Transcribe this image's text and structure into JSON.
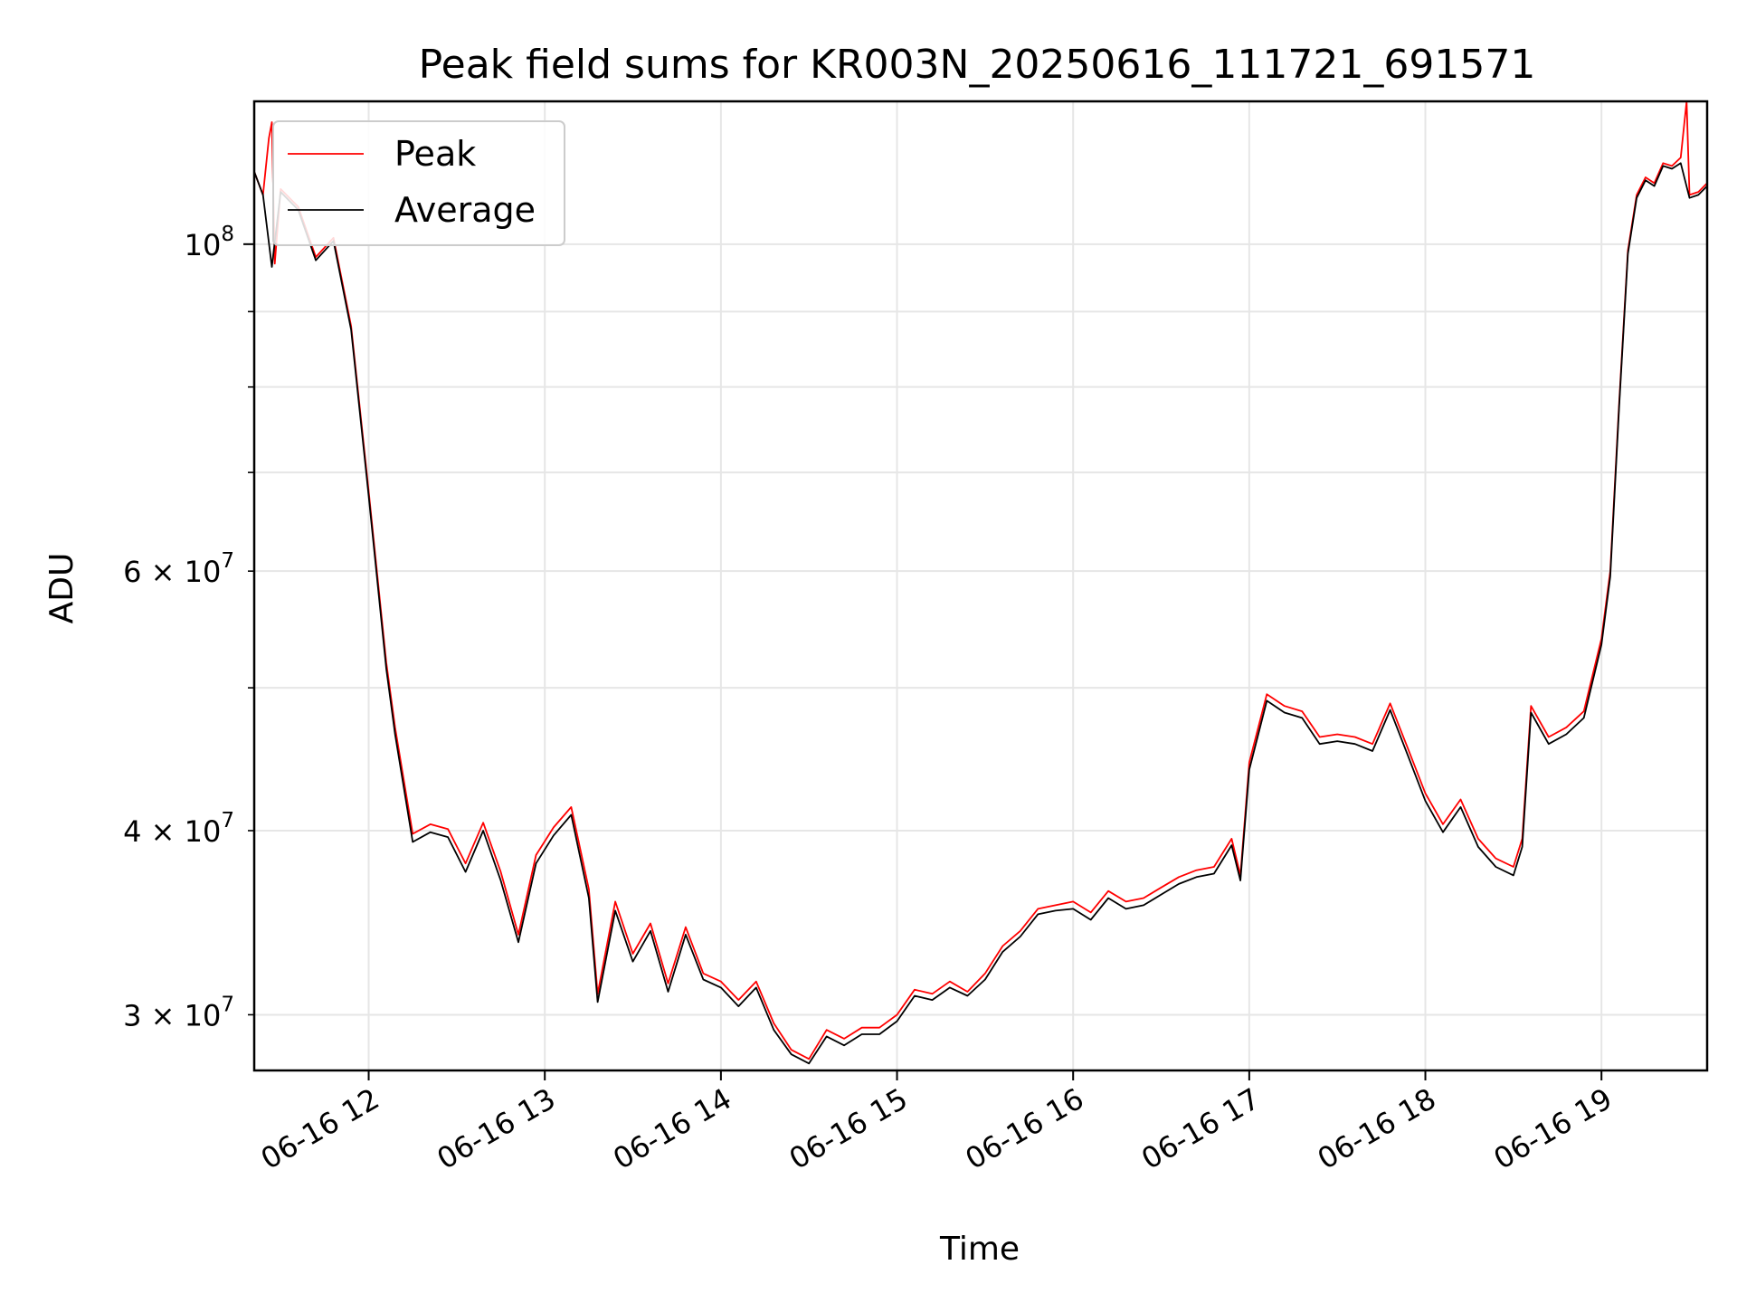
{
  "chart_data": {
    "type": "line",
    "title": "Peak field sums for KR003N_20250616_111721_691571",
    "xlabel": "Time",
    "ylabel": "ADU",
    "yscale": "log",
    "grid": true,
    "legend_position": "upper-left",
    "xlim": [
      "2025-06-16 11:21",
      "2025-06-16 19:36"
    ],
    "ylim": [
      27500000,
      125000000
    ],
    "x_tick_labels": [
      "06-16 12",
      "06-16 13",
      "06-16 14",
      "06-16 15",
      "06-16 16",
      "06-16 17",
      "06-16 18",
      "06-16 19"
    ],
    "x_ticks": [
      "2025-06-16 12:00",
      "2025-06-16 13:00",
      "2025-06-16 14:00",
      "2025-06-16 15:00",
      "2025-06-16 16:00",
      "2025-06-16 17:00",
      "2025-06-16 18:00",
      "2025-06-16 19:00"
    ],
    "y_major_ticks": [
      {
        "value": 100000000,
        "base": "10",
        "exp": "8"
      }
    ],
    "y_minor_ticks": [
      {
        "value": 30000000,
        "mant": "3",
        "exp": "7"
      },
      {
        "value": 40000000,
        "mant": "4",
        "exp": "7"
      },
      {
        "value": 60000000,
        "mant": "6",
        "exp": "7"
      }
    ],
    "y_minor_grid": [
      30000000,
      40000000,
      50000000,
      60000000,
      70000000,
      80000000,
      90000000
    ],
    "series": [
      {
        "name": "Peak",
        "color": "#ff0000",
        "points": [
          [
            "2025-06-16 11:21",
            112000000
          ],
          [
            "2025-06-16 11:24",
            108000000
          ],
          [
            "2025-06-16 11:26",
            118000000
          ],
          [
            "2025-06-16 11:27",
            121000000
          ],
          [
            "2025-06-16 11:28",
            97000000
          ],
          [
            "2025-06-16 11:30",
            109000000
          ],
          [
            "2025-06-16 11:36",
            106000000
          ],
          [
            "2025-06-16 11:42",
            98000000
          ],
          [
            "2025-06-16 11:48",
            101000000
          ],
          [
            "2025-06-16 11:54",
            88000000
          ],
          [
            "2025-06-16 12:00",
            68000000
          ],
          [
            "2025-06-16 12:06",
            52000000
          ],
          [
            "2025-06-16 12:09",
            47000000
          ],
          [
            "2025-06-16 12:15",
            39800000
          ],
          [
            "2025-06-16 12:21",
            40400000
          ],
          [
            "2025-06-16 12:27",
            40100000
          ],
          [
            "2025-06-16 12:33",
            38000000
          ],
          [
            "2025-06-16 12:39",
            40500000
          ],
          [
            "2025-06-16 12:45",
            37500000
          ],
          [
            "2025-06-16 12:51",
            34000000
          ],
          [
            "2025-06-16 12:57",
            38500000
          ],
          [
            "2025-06-16 13:03",
            40200000
          ],
          [
            "2025-06-16 13:09",
            41500000
          ],
          [
            "2025-06-16 13:15",
            36500000
          ],
          [
            "2025-06-16 13:18",
            31000000
          ],
          [
            "2025-06-16 13:24",
            35800000
          ],
          [
            "2025-06-16 13:30",
            33000000
          ],
          [
            "2025-06-16 13:36",
            34600000
          ],
          [
            "2025-06-16 13:42",
            31500000
          ],
          [
            "2025-06-16 13:48",
            34400000
          ],
          [
            "2025-06-16 13:54",
            32000000
          ],
          [
            "2025-06-16 14:00",
            31600000
          ],
          [
            "2025-06-16 14:06",
            30700000
          ],
          [
            "2025-06-16 14:12",
            31600000
          ],
          [
            "2025-06-16 14:18",
            29600000
          ],
          [
            "2025-06-16 14:24",
            28400000
          ],
          [
            "2025-06-16 14:30",
            28000000
          ],
          [
            "2025-06-16 14:36",
            29300000
          ],
          [
            "2025-06-16 14:42",
            28900000
          ],
          [
            "2025-06-16 14:48",
            29400000
          ],
          [
            "2025-06-16 14:54",
            29400000
          ],
          [
            "2025-06-16 15:00",
            30000000
          ],
          [
            "2025-06-16 15:06",
            31200000
          ],
          [
            "2025-06-16 15:12",
            31000000
          ],
          [
            "2025-06-16 15:18",
            31600000
          ],
          [
            "2025-06-16 15:24",
            31100000
          ],
          [
            "2025-06-16 15:30",
            32000000
          ],
          [
            "2025-06-16 15:36",
            33400000
          ],
          [
            "2025-06-16 15:42",
            34200000
          ],
          [
            "2025-06-16 15:48",
            35400000
          ],
          [
            "2025-06-16 15:54",
            35600000
          ],
          [
            "2025-06-16 16:00",
            35800000
          ],
          [
            "2025-06-16 16:06",
            35200000
          ],
          [
            "2025-06-16 16:12",
            36400000
          ],
          [
            "2025-06-16 16:18",
            35800000
          ],
          [
            "2025-06-16 16:24",
            36000000
          ],
          [
            "2025-06-16 16:30",
            36600000
          ],
          [
            "2025-06-16 16:36",
            37200000
          ],
          [
            "2025-06-16 16:42",
            37600000
          ],
          [
            "2025-06-16 16:48",
            37800000
          ],
          [
            "2025-06-16 16:54",
            39500000
          ],
          [
            "2025-06-16 16:57",
            37300000
          ],
          [
            "2025-06-16 17:00",
            44500000
          ],
          [
            "2025-06-16 17:06",
            49500000
          ],
          [
            "2025-06-16 17:12",
            48600000
          ],
          [
            "2025-06-16 17:18",
            48200000
          ],
          [
            "2025-06-16 17:24",
            46300000
          ],
          [
            "2025-06-16 17:30",
            46500000
          ],
          [
            "2025-06-16 17:36",
            46300000
          ],
          [
            "2025-06-16 17:42",
            45800000
          ],
          [
            "2025-06-16 17:48",
            48800000
          ],
          [
            "2025-06-16 17:54",
            45500000
          ],
          [
            "2025-06-16 18:00",
            42400000
          ],
          [
            "2025-06-16 18:06",
            40400000
          ],
          [
            "2025-06-16 18:12",
            42000000
          ],
          [
            "2025-06-16 18:18",
            39500000
          ],
          [
            "2025-06-16 18:24",
            38300000
          ],
          [
            "2025-06-16 18:30",
            37800000
          ],
          [
            "2025-06-16 18:33",
            39500000
          ],
          [
            "2025-06-16 18:36",
            48600000
          ],
          [
            "2025-06-16 18:42",
            46300000
          ],
          [
            "2025-06-16 18:48",
            47000000
          ],
          [
            "2025-06-16 18:54",
            48200000
          ],
          [
            "2025-06-16 19:00",
            54000000
          ],
          [
            "2025-06-16 19:03",
            60000000
          ],
          [
            "2025-06-16 19:06",
            78000000
          ],
          [
            "2025-06-16 19:09",
            99000000
          ],
          [
            "2025-06-16 19:12",
            108000000
          ],
          [
            "2025-06-16 19:15",
            111000000
          ],
          [
            "2025-06-16 19:18",
            110000000
          ],
          [
            "2025-06-16 19:21",
            113500000
          ],
          [
            "2025-06-16 19:24",
            113000000
          ],
          [
            "2025-06-16 19:27",
            114500000
          ],
          [
            "2025-06-16 19:29",
            125000000
          ],
          [
            "2025-06-16 19:30",
            108000000
          ],
          [
            "2025-06-16 19:33",
            108500000
          ],
          [
            "2025-06-16 19:36",
            110000000
          ]
        ]
      },
      {
        "name": "Average",
        "color": "#000000",
        "points": [
          [
            "2025-06-16 11:21",
            112000000
          ],
          [
            "2025-06-16 11:24",
            108000000
          ],
          [
            "2025-06-16 11:27",
            96500000
          ],
          [
            "2025-06-16 11:30",
            108500000
          ],
          [
            "2025-06-16 11:36",
            105500000
          ],
          [
            "2025-06-16 11:42",
            97500000
          ],
          [
            "2025-06-16 11:48",
            100500000
          ],
          [
            "2025-06-16 11:54",
            87500000
          ],
          [
            "2025-06-16 12:00",
            67500000
          ],
          [
            "2025-06-16 12:06",
            51500000
          ],
          [
            "2025-06-16 12:09",
            46500000
          ],
          [
            "2025-06-16 12:15",
            39300000
          ],
          [
            "2025-06-16 12:21",
            39900000
          ],
          [
            "2025-06-16 12:27",
            39600000
          ],
          [
            "2025-06-16 12:33",
            37500000
          ],
          [
            "2025-06-16 12:39",
            40000000
          ],
          [
            "2025-06-16 12:45",
            37000000
          ],
          [
            "2025-06-16 12:51",
            33600000
          ],
          [
            "2025-06-16 12:57",
            38000000
          ],
          [
            "2025-06-16 13:03",
            39700000
          ],
          [
            "2025-06-16 13:09",
            41000000
          ],
          [
            "2025-06-16 13:15",
            36000000
          ],
          [
            "2025-06-16 13:18",
            30600000
          ],
          [
            "2025-06-16 13:24",
            35300000
          ],
          [
            "2025-06-16 13:30",
            32600000
          ],
          [
            "2025-06-16 13:36",
            34200000
          ],
          [
            "2025-06-16 13:42",
            31100000
          ],
          [
            "2025-06-16 13:48",
            34000000
          ],
          [
            "2025-06-16 13:54",
            31700000
          ],
          [
            "2025-06-16 14:00",
            31300000
          ],
          [
            "2025-06-16 14:06",
            30400000
          ],
          [
            "2025-06-16 14:12",
            31300000
          ],
          [
            "2025-06-16 14:18",
            29300000
          ],
          [
            "2025-06-16 14:24",
            28200000
          ],
          [
            "2025-06-16 14:30",
            27800000
          ],
          [
            "2025-06-16 14:36",
            29000000
          ],
          [
            "2025-06-16 14:42",
            28600000
          ],
          [
            "2025-06-16 14:48",
            29100000
          ],
          [
            "2025-06-16 14:54",
            29100000
          ],
          [
            "2025-06-16 15:00",
            29700000
          ],
          [
            "2025-06-16 15:06",
            30900000
          ],
          [
            "2025-06-16 15:12",
            30700000
          ],
          [
            "2025-06-16 15:18",
            31300000
          ],
          [
            "2025-06-16 15:24",
            30900000
          ],
          [
            "2025-06-16 15:30",
            31700000
          ],
          [
            "2025-06-16 15:36",
            33100000
          ],
          [
            "2025-06-16 15:42",
            33900000
          ],
          [
            "2025-06-16 15:48",
            35100000
          ],
          [
            "2025-06-16 15:54",
            35300000
          ],
          [
            "2025-06-16 16:00",
            35400000
          ],
          [
            "2025-06-16 16:06",
            34800000
          ],
          [
            "2025-06-16 16:12",
            36000000
          ],
          [
            "2025-06-16 16:18",
            35400000
          ],
          [
            "2025-06-16 16:24",
            35600000
          ],
          [
            "2025-06-16 16:30",
            36200000
          ],
          [
            "2025-06-16 16:36",
            36800000
          ],
          [
            "2025-06-16 16:42",
            37200000
          ],
          [
            "2025-06-16 16:48",
            37400000
          ],
          [
            "2025-06-16 16:54",
            39100000
          ],
          [
            "2025-06-16 16:57",
            37000000
          ],
          [
            "2025-06-16 17:00",
            44000000
          ],
          [
            "2025-06-16 17:06",
            49000000
          ],
          [
            "2025-06-16 17:12",
            48100000
          ],
          [
            "2025-06-16 17:18",
            47700000
          ],
          [
            "2025-06-16 17:24",
            45800000
          ],
          [
            "2025-06-16 17:30",
            46000000
          ],
          [
            "2025-06-16 17:36",
            45800000
          ],
          [
            "2025-06-16 17:42",
            45300000
          ],
          [
            "2025-06-16 17:48",
            48300000
          ],
          [
            "2025-06-16 17:54",
            45000000
          ],
          [
            "2025-06-16 18:00",
            41900000
          ],
          [
            "2025-06-16 18:06",
            39900000
          ],
          [
            "2025-06-16 18:12",
            41500000
          ],
          [
            "2025-06-16 18:18",
            39000000
          ],
          [
            "2025-06-16 18:24",
            37800000
          ],
          [
            "2025-06-16 18:30",
            37300000
          ],
          [
            "2025-06-16 18:33",
            39000000
          ],
          [
            "2025-06-16 18:36",
            48100000
          ],
          [
            "2025-06-16 18:42",
            45800000
          ],
          [
            "2025-06-16 18:48",
            46500000
          ],
          [
            "2025-06-16 18:54",
            47700000
          ],
          [
            "2025-06-16 19:00",
            53500000
          ],
          [
            "2025-06-16 19:03",
            59500000
          ],
          [
            "2025-06-16 19:06",
            77500000
          ],
          [
            "2025-06-16 19:09",
            98500000
          ],
          [
            "2025-06-16 19:12",
            107500000
          ],
          [
            "2025-06-16 19:15",
            110500000
          ],
          [
            "2025-06-16 19:18",
            109500000
          ],
          [
            "2025-06-16 19:21",
            113000000
          ],
          [
            "2025-06-16 19:24",
            112500000
          ],
          [
            "2025-06-16 19:27",
            113500000
          ],
          [
            "2025-06-16 19:30",
            107500000
          ],
          [
            "2025-06-16 19:33",
            108000000
          ],
          [
            "2025-06-16 19:36",
            109500000
          ]
        ]
      }
    ]
  }
}
